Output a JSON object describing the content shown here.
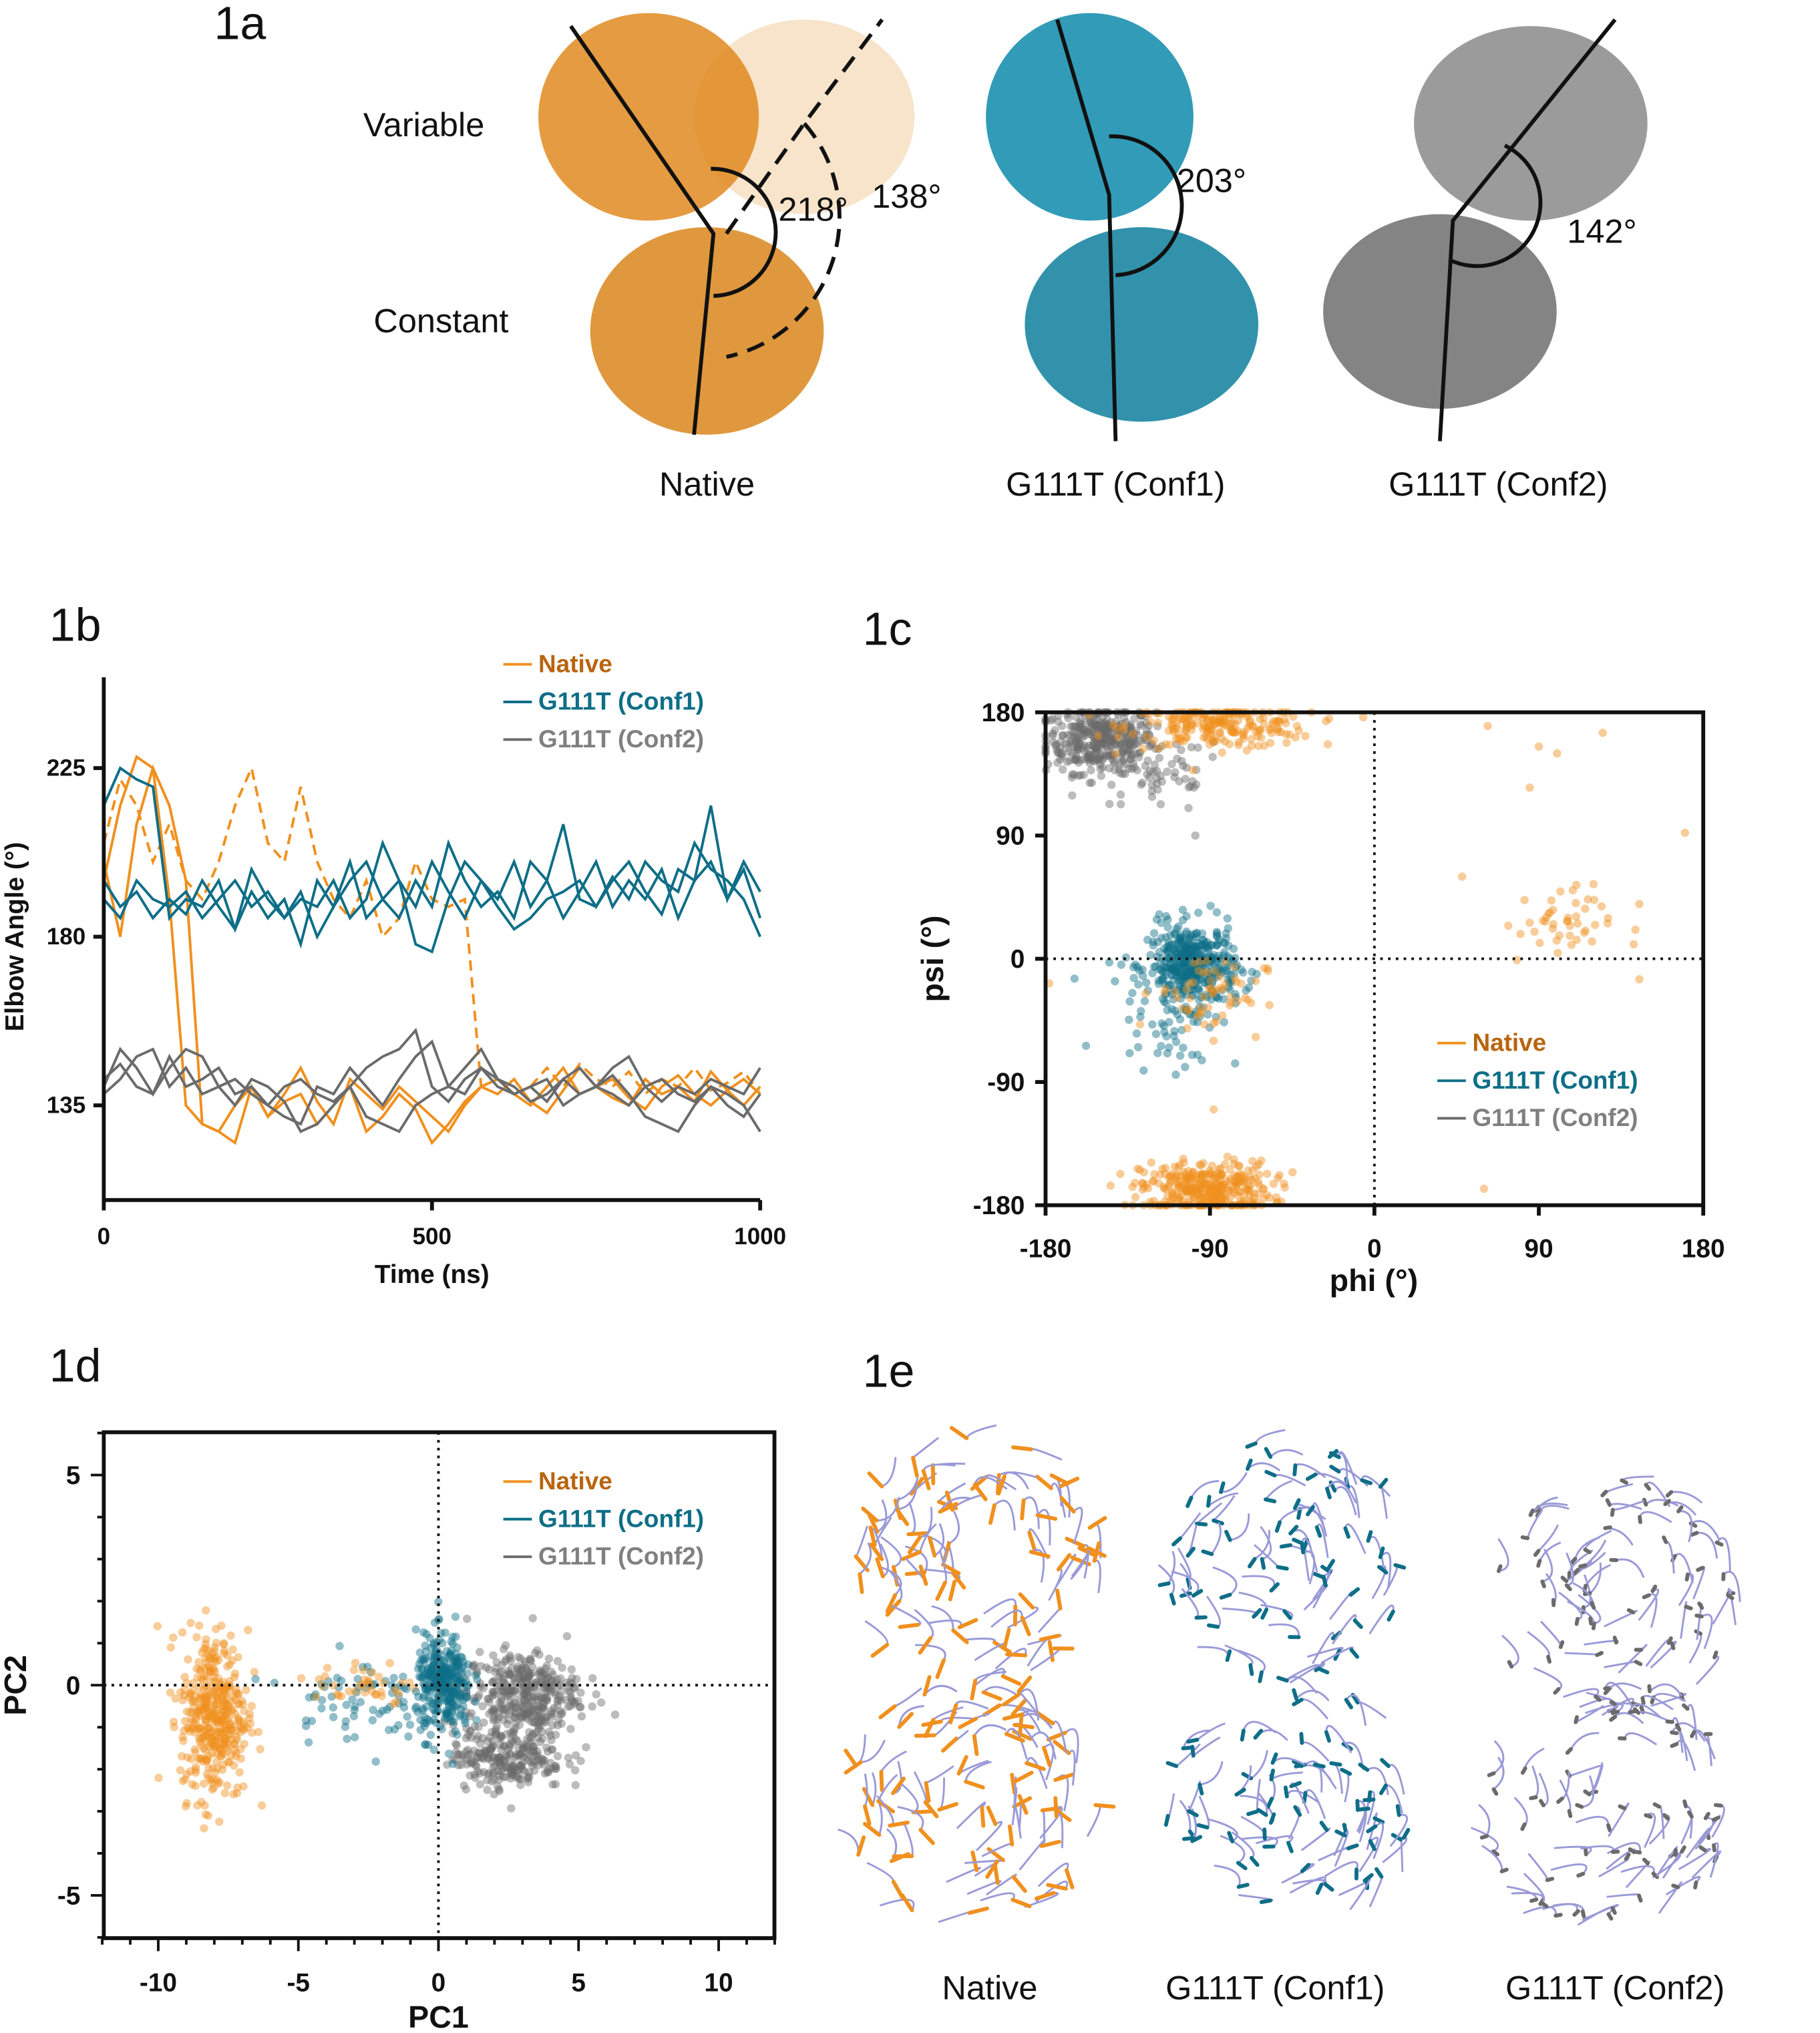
{
  "panel_1a": {
    "label": "1a",
    "domain_labels": {
      "variable": "Variable",
      "constant": "Constant"
    },
    "structures": [
      {
        "name": "Native",
        "angles": [
          "218°",
          "138°"
        ]
      },
      {
        "name": "G111T (Conf1)",
        "angles": [
          "203°"
        ]
      },
      {
        "name": "G111T (Conf2)",
        "angles": [
          "142°"
        ]
      }
    ]
  },
  "panel_1e": {
    "label": "1e",
    "structures": [
      "Native",
      "G111T (Conf1)",
      "G111T (Conf2)"
    ]
  },
  "colors": {
    "native": "#F0901E",
    "native_text": "#B8650F",
    "conf1": "#0E6E87",
    "conf2": "#6B6B6B",
    "conf2_text": "#808080",
    "backbone": "#9A9AD8"
  },
  "chart_data": [
    {
      "id": "1b",
      "label": "1b",
      "type": "line",
      "xlabel": "Time (ns)",
      "ylabel": "Elbow Angle (°)",
      "xlim": [
        0,
        1000
      ],
      "ylim": [
        112,
        247
      ],
      "xticks": [
        "0",
        "500",
        "1000"
      ],
      "yticks": [
        "135",
        "180",
        "225"
      ],
      "legend": [
        "Native",
        "G111T (Conf1)",
        "G111T (Conf2)"
      ],
      "legend_placement": "top-right",
      "x": [
        0,
        25,
        50,
        75,
        100,
        125,
        150,
        175,
        200,
        225,
        250,
        275,
        300,
        325,
        350,
        375,
        400,
        425,
        450,
        475,
        500,
        525,
        550,
        575,
        600,
        625,
        650,
        675,
        700,
        725,
        750,
        775,
        800,
        825,
        850,
        875,
        900,
        925,
        950,
        975,
        1000
      ],
      "series": [
        {
          "name": "Native",
          "style": "solid",
          "values": [
            195,
            215,
            228,
            225,
            190,
            135,
            130,
            128,
            135,
            140,
            132,
            138,
            145,
            136,
            130,
            142,
            138,
            134,
            140,
            136,
            132,
            128,
            135,
            140,
            138,
            142,
            136,
            133,
            139,
            145,
            140,
            137,
            135,
            142,
            138,
            140,
            136,
            144,
            139,
            135,
            140
          ]
        },
        {
          "name": "Native",
          "style": "solid",
          "values": [
            200,
            180,
            210,
            225,
            215,
            195,
            130,
            128,
            125,
            140,
            132,
            136,
            138,
            130,
            135,
            140,
            128,
            132,
            138,
            134,
            125,
            130,
            136,
            140,
            142,
            138,
            135,
            140,
            145,
            138,
            140,
            142,
            137,
            134,
            140,
            143,
            138,
            135,
            139,
            142,
            138
          ]
        },
        {
          "name": "Native",
          "style": "dashed",
          "values": [
            205,
            222,
            215,
            200,
            210,
            195,
            190,
            200,
            215,
            225,
            205,
            200,
            220,
            200,
            190,
            185,
            195,
            180,
            185,
            200,
            190,
            188,
            190,
            140,
            142,
            138,
            140,
            145,
            140,
            146,
            142,
            140,
            144,
            138,
            142,
            140,
            145,
            139,
            141,
            144,
            138
          ]
        },
        {
          "name": "G111T (Conf1)",
          "style": "solid",
          "values": [
            215,
            225,
            222,
            220,
            185,
            190,
            188,
            195,
            182,
            192,
            185,
            190,
            178,
            195,
            188,
            200,
            185,
            190,
            195,
            188,
            200,
            192,
            185,
            195,
            190,
            200,
            188,
            195,
            185,
            192,
            200,
            188,
            195,
            190,
            198,
            185,
            195,
            200,
            190,
            198,
            185
          ]
        },
        {
          "name": "G111T (Conf1)",
          "style": "solid",
          "values": [
            190,
            185,
            195,
            190,
            188,
            192,
            185,
            190,
            195,
            188,
            192,
            185,
            190,
            188,
            195,
            185,
            190,
            205,
            195,
            178,
            176,
            190,
            200,
            195,
            188,
            182,
            185,
            190,
            192,
            195,
            188,
            196,
            190,
            200,
            195,
            192,
            205,
            198,
            195,
            190,
            180
          ]
        },
        {
          "name": "G111T (Conf1)",
          "style": "solid",
          "values": [
            195,
            188,
            192,
            185,
            190,
            186,
            195,
            188,
            182,
            198,
            190,
            185,
            192,
            180,
            188,
            195,
            200,
            190,
            185,
            195,
            188,
            205,
            195,
            188,
            192,
            185,
            200,
            195,
            210,
            190,
            188,
            195,
            200,
            192,
            186,
            198,
            195,
            215,
            190,
            200,
            192
          ]
        },
        {
          "name": "G111T (Conf2)",
          "style": "solid",
          "values": [
            140,
            150,
            145,
            138,
            148,
            140,
            142,
            145,
            138,
            140,
            135,
            132,
            130,
            140,
            138,
            145,
            140,
            135,
            142,
            148,
            152,
            140,
            138,
            145,
            142,
            140,
            136,
            138,
            142,
            145,
            140,
            138,
            135,
            140,
            142,
            138,
            136,
            140,
            135,
            132,
            138
          ]
        },
        {
          "name": "G111T (Conf2)",
          "style": "solid",
          "values": [
            138,
            142,
            148,
            150,
            140,
            145,
            138,
            140,
            135,
            142,
            140,
            136,
            128,
            130,
            135,
            140,
            132,
            130,
            128,
            135,
            138,
            140,
            145,
            150,
            142,
            138,
            140,
            142,
            135,
            138,
            140,
            143,
            138,
            132,
            130,
            128,
            135,
            140,
            138,
            135,
            128
          ]
        },
        {
          "name": "G111T (Conf2)",
          "style": "solid",
          "values": [
            142,
            146,
            140,
            138,
            145,
            150,
            148,
            140,
            142,
            138,
            135,
            140,
            142,
            138,
            136,
            140,
            145,
            148,
            150,
            155,
            140,
            136,
            142,
            145,
            140,
            138,
            140,
            136,
            142,
            138,
            140,
            145,
            148,
            140,
            136,
            140,
            138,
            142,
            140,
            138,
            145
          ]
        }
      ]
    },
    {
      "id": "1c",
      "label": "1c",
      "type": "scatter",
      "xlabel": "phi (°)",
      "ylabel": "psi (°)",
      "xlim": [
        -180,
        180
      ],
      "ylim": [
        -180,
        180
      ],
      "xticks": [
        "-180",
        "-90",
        "0",
        "90",
        "180"
      ],
      "yticks": [
        "-180",
        "-90",
        "0",
        "90",
        "180"
      ],
      "legend": [
        "Native",
        "G111T (Conf1)",
        "G111T (Conf2)"
      ],
      "legend_placement": "lower-right",
      "clusters": [
        {
          "series": "G111T (Conf2)",
          "center": [
            -150,
            160
          ],
          "spread": [
            15,
            12
          ],
          "n": 350
        },
        {
          "series": "G111T (Conf2)",
          "center": [
            -120,
            135
          ],
          "spread": [
            20,
            15
          ],
          "n": 60
        },
        {
          "series": "Native",
          "center": [
            -85,
            170
          ],
          "spread": [
            25,
            8
          ],
          "n": 220
        },
        {
          "series": "Native",
          "center": [
            -92,
            -168
          ],
          "spread": [
            18,
            10
          ],
          "n": 350
        },
        {
          "series": "G111T (Conf1)",
          "center": [
            -100,
            -5
          ],
          "spread": [
            12,
            15
          ],
          "n": 400
        },
        {
          "series": "G111T (Conf1)",
          "center": [
            -110,
            -40
          ],
          "spread": [
            18,
            20
          ],
          "n": 60
        },
        {
          "series": "Native",
          "center": [
            -90,
            -25
          ],
          "spread": [
            15,
            15
          ],
          "n": 60
        },
        {
          "series": "Native",
          "center": [
            100,
            25
          ],
          "spread": [
            15,
            14
          ],
          "n": 45
        }
      ],
      "outliers": [
        {
          "series": "Native",
          "points": [
            [
              62,
              170
            ],
            [
              85,
              125
            ],
            [
              90,
              155
            ],
            [
              100,
              150
            ],
            [
              125,
              165
            ],
            [
              170,
              92
            ],
            [
              48,
              60
            ],
            [
              145,
              40
            ],
            [
              145,
              -15
            ],
            [
              60,
              -168
            ],
            [
              -178,
              -18
            ],
            [
              -88,
              -110
            ]
          ]
        },
        {
          "series": "G111T (Conf2)",
          "points": [
            [
              -145,
              113
            ],
            [
              -98,
              90
            ]
          ]
        }
      ]
    },
    {
      "id": "1d",
      "label": "1d",
      "type": "scatter",
      "xlabel": "PC1",
      "ylabel": "PC2",
      "xlim": [
        -12,
        12
      ],
      "ylim": [
        -6,
        6
      ],
      "xticks": [
        "-10",
        "-5",
        "0",
        "5",
        "10"
      ],
      "yticks": [
        "-5",
        "0",
        "5"
      ],
      "legend": [
        "Native",
        "G111T (Conf1)",
        "G111T (Conf2)"
      ],
      "legend_placement": "top-right",
      "clusters": [
        {
          "series": "Native",
          "center": [
            -8,
            -0.7
          ],
          "spread": [
            0.6,
            1.0
          ],
          "n": 400
        },
        {
          "series": "G111T (Conf2)",
          "center": [
            3,
            -0.2
          ],
          "spread": [
            1,
            0.5
          ],
          "n": 350
        },
        {
          "series": "G111T (Conf2)",
          "center": [
            2.5,
            -1.7
          ],
          "spread": [
            1,
            0.4
          ],
          "n": 250
        },
        {
          "series": "G111T (Conf1)",
          "center": [
            -3,
            -0.3
          ],
          "spread": [
            1.2,
            0.5
          ],
          "n": 70
        },
        {
          "series": "Native",
          "center": [
            -2.5,
            0
          ],
          "spread": [
            1,
            0.3
          ],
          "n": 40
        },
        {
          "series": "G111T (Conf1)",
          "center": [
            0.2,
            0
          ],
          "spread": [
            0.5,
            0.6
          ],
          "n": 300
        }
      ]
    }
  ]
}
